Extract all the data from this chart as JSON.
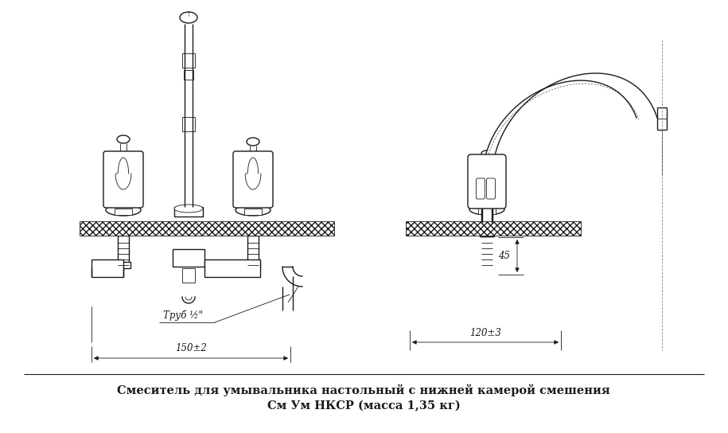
{
  "title_line1": "Смеситель для умывальника настольный с нижней камерой смешения",
  "title_line2": "См Ум НКСР (масса 1,35 кг)",
  "bg_color": "#ffffff",
  "line_color": "#1a1a1a",
  "dim_150": "150±2",
  "dim_120": "120±3",
  "dim_45": "45",
  "label_trub": "Труб ½\"",
  "figsize": [
    9.15,
    5.44
  ],
  "dpi": 100
}
